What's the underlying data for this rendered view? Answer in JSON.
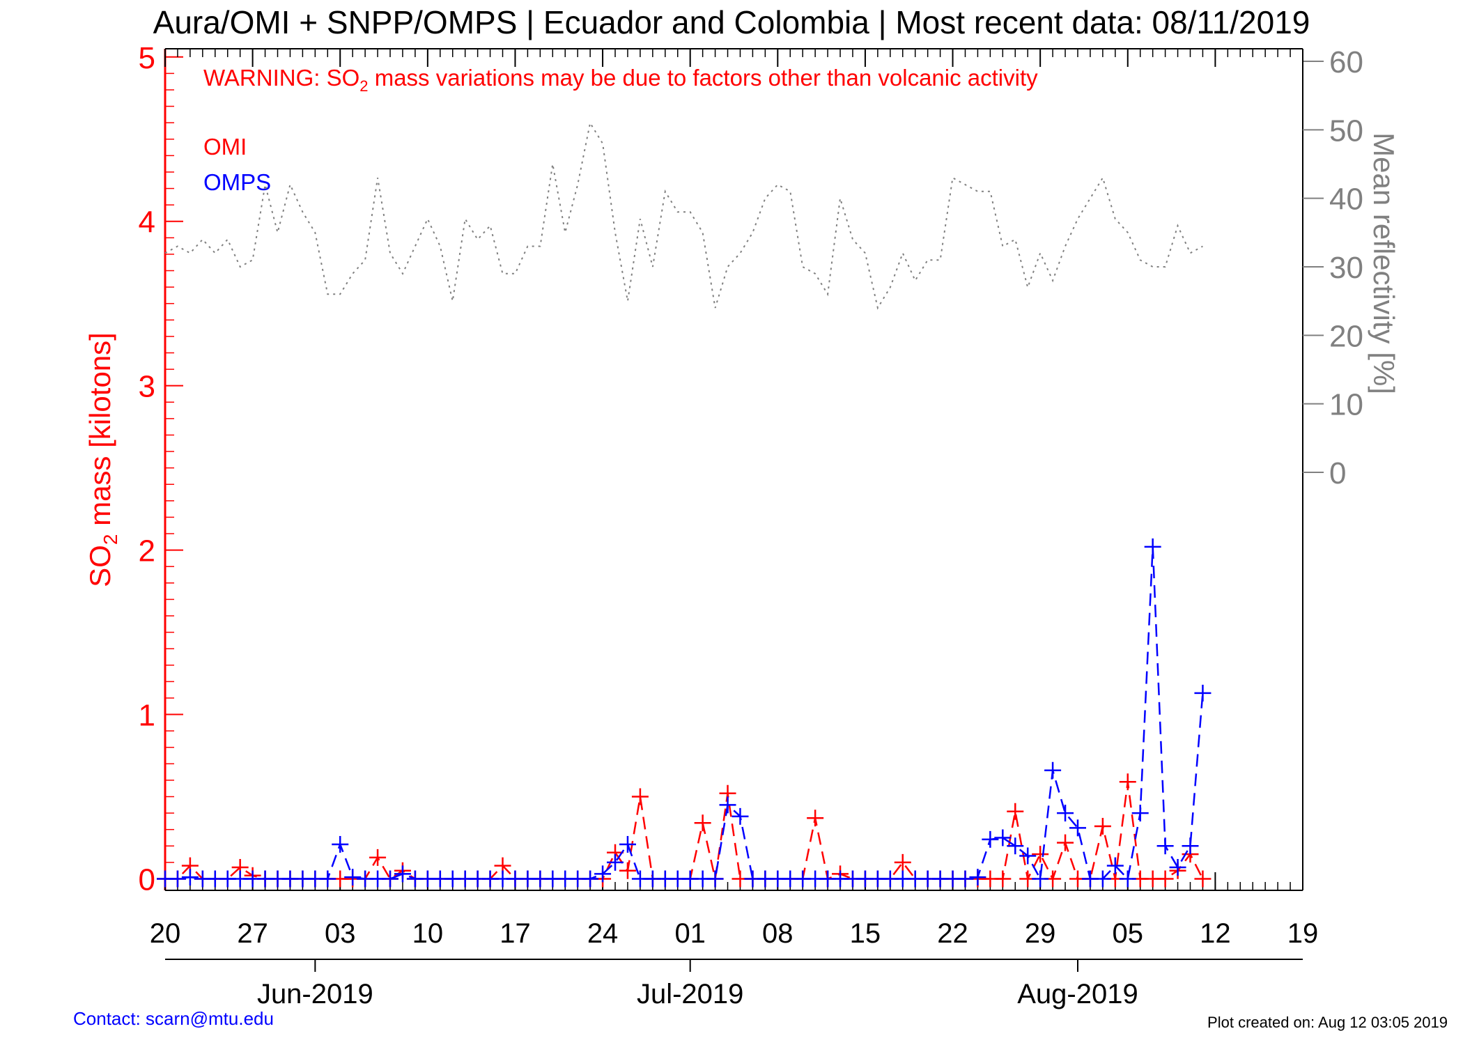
{
  "title": "Aura/OMI + SNPP/OMPS | Ecuador and Colombia | Most recent data: 08/11/2019",
  "warning": {
    "prefix": "WARNING: SO",
    "subscript": "2",
    "suffix": " mass variations may be due to factors other than volcanic activity"
  },
  "legend": {
    "omi": "OMI",
    "omps": "OMPS"
  },
  "left_axis_label": {
    "prefix": "SO",
    "subscript": "2",
    "suffix": " mass [kilotons]"
  },
  "right_axis_label": "Mean reflectivity [%]",
  "footer": {
    "contact": "Contact: scarn@mtu.edu",
    "created": "Plot created on: Aug 12 03:05 2019"
  },
  "colors": {
    "omi": "#ff0000",
    "omps": "#0000ff",
    "reflectivity": "#808080",
    "left_axis": "#ff0000",
    "right_axis": "#808080"
  },
  "chart_data": {
    "type": "line",
    "x_unit": "date",
    "x_range": [
      "2019-05-20",
      "2019-08-19"
    ],
    "x_tick_labels": [
      {
        "date": "2019-05-20",
        "label": "20"
      },
      {
        "date": "2019-05-27",
        "label": "27"
      },
      {
        "date": "2019-06-03",
        "label": "03"
      },
      {
        "date": "2019-06-10",
        "label": "10"
      },
      {
        "date": "2019-06-17",
        "label": "17"
      },
      {
        "date": "2019-06-24",
        "label": "24"
      },
      {
        "date": "2019-07-01",
        "label": "01"
      },
      {
        "date": "2019-07-08",
        "label": "08"
      },
      {
        "date": "2019-07-15",
        "label": "15"
      },
      {
        "date": "2019-07-22",
        "label": "22"
      },
      {
        "date": "2019-07-29",
        "label": "29"
      },
      {
        "date": "2019-08-05",
        "label": "05"
      },
      {
        "date": "2019-08-12",
        "label": "12"
      },
      {
        "date": "2019-08-19",
        "label": "19"
      }
    ],
    "month_labels": [
      {
        "date": "2019-06-01",
        "label": "Jun-2019"
      },
      {
        "date": "2019-07-01",
        "label": "Jul-2019"
      },
      {
        "date": "2019-08-01",
        "label": "Aug-2019"
      }
    ],
    "left_axis": {
      "ylim": [
        -0.07,
        5.05
      ],
      "ticks": [
        0,
        1,
        2,
        3,
        4,
        5
      ],
      "tick_labels": [
        "0",
        "1",
        "2",
        "3",
        "4",
        "5"
      ]
    },
    "right_axis": {
      "ylim": [
        0,
        60
      ],
      "ticks": [
        0,
        10,
        20,
        30,
        40,
        50,
        60
      ],
      "tick_labels": [
        "0",
        "10",
        "20",
        "30",
        "40",
        "50",
        "60"
      ]
    },
    "series": [
      {
        "name": "OMI",
        "axis": "left",
        "style": "dashed",
        "marker": "plus",
        "points": [
          [
            "2019-05-20",
            0.0
          ],
          [
            "2019-05-21",
            0.0
          ],
          [
            "2019-05-22",
            0.08
          ],
          [
            "2019-05-23",
            0.0
          ],
          [
            "2019-05-24",
            0.0
          ],
          [
            "2019-05-25",
            0.0
          ],
          [
            "2019-05-26",
            0.07
          ],
          [
            "2019-05-27",
            0.02
          ],
          [
            "2019-05-28",
            0.0
          ],
          [
            "2019-05-29",
            0.0
          ],
          [
            "2019-05-30",
            0.0
          ],
          [
            "2019-05-31",
            0.0
          ],
          [
            "2019-06-01",
            0.0
          ],
          [
            "2019-06-02",
            0.0
          ],
          [
            "2019-06-03",
            0.0
          ],
          [
            "2019-06-04",
            0.0
          ],
          [
            "2019-06-05",
            0.0
          ],
          [
            "2019-06-06",
            0.13
          ],
          [
            "2019-06-07",
            0.0
          ],
          [
            "2019-06-08",
            0.05
          ],
          [
            "2019-06-09",
            0.0
          ],
          [
            "2019-06-10",
            0.0
          ],
          [
            "2019-06-11",
            0.0
          ],
          [
            "2019-06-12",
            0.0
          ],
          [
            "2019-06-13",
            0.0
          ],
          [
            "2019-06-14",
            0.0
          ],
          [
            "2019-06-15",
            0.0
          ],
          [
            "2019-06-16",
            0.08
          ],
          [
            "2019-06-17",
            0.0
          ],
          [
            "2019-06-18",
            0.0
          ],
          [
            "2019-06-19",
            0.0
          ],
          [
            "2019-06-20",
            0.0
          ],
          [
            "2019-06-21",
            0.0
          ],
          [
            "2019-06-22",
            0.0
          ],
          [
            "2019-06-23",
            0.0
          ],
          [
            "2019-06-24",
            0.0
          ],
          [
            "2019-06-25",
            0.16
          ],
          [
            "2019-06-26",
            0.05
          ],
          [
            "2019-06-27",
            0.5
          ],
          [
            "2019-06-28",
            0.0
          ],
          [
            "2019-06-29",
            0.0
          ],
          [
            "2019-06-30",
            0.0
          ],
          [
            "2019-07-01",
            0.0
          ],
          [
            "2019-07-02",
            0.34
          ],
          [
            "2019-07-03",
            0.0
          ],
          [
            "2019-07-04",
            0.52
          ],
          [
            "2019-07-05",
            0.0
          ],
          [
            "2019-07-06",
            0.0
          ],
          [
            "2019-07-07",
            0.0
          ],
          [
            "2019-07-08",
            0.0
          ],
          [
            "2019-07-09",
            0.0
          ],
          [
            "2019-07-10",
            0.0
          ],
          [
            "2019-07-11",
            0.37
          ],
          [
            "2019-07-12",
            0.0
          ],
          [
            "2019-07-13",
            0.03
          ],
          [
            "2019-07-14",
            0.0
          ],
          [
            "2019-07-15",
            0.0
          ],
          [
            "2019-07-16",
            0.0
          ],
          [
            "2019-07-17",
            0.0
          ],
          [
            "2019-07-18",
            0.1
          ],
          [
            "2019-07-19",
            0.0
          ],
          [
            "2019-07-20",
            0.0
          ],
          [
            "2019-07-21",
            0.0
          ],
          [
            "2019-07-22",
            0.0
          ],
          [
            "2019-07-23",
            0.0
          ],
          [
            "2019-07-24",
            0.0
          ],
          [
            "2019-07-25",
            0.0
          ],
          [
            "2019-07-26",
            0.0
          ],
          [
            "2019-07-27",
            0.41
          ],
          [
            "2019-07-28",
            0.0
          ],
          [
            "2019-07-29",
            0.15
          ],
          [
            "2019-07-30",
            0.0
          ],
          [
            "2019-07-31",
            0.22
          ],
          [
            "2019-08-01",
            0.0
          ],
          [
            "2019-08-02",
            0.0
          ],
          [
            "2019-08-03",
            0.32
          ],
          [
            "2019-08-04",
            0.0
          ],
          [
            "2019-08-05",
            0.59
          ],
          [
            "2019-08-06",
            0.0
          ],
          [
            "2019-08-07",
            0.0
          ],
          [
            "2019-08-08",
            0.0
          ],
          [
            "2019-08-09",
            0.05
          ],
          [
            "2019-08-10",
            0.15
          ],
          [
            "2019-08-11",
            0.0
          ]
        ]
      },
      {
        "name": "OMPS",
        "axis": "left",
        "style": "dashed",
        "marker": "plus",
        "points": [
          [
            "2019-05-20",
            0.0
          ],
          [
            "2019-05-21",
            0.0
          ],
          [
            "2019-05-22",
            0.01
          ],
          [
            "2019-05-23",
            0.0
          ],
          [
            "2019-05-24",
            0.0
          ],
          [
            "2019-05-25",
            0.0
          ],
          [
            "2019-05-26",
            0.0
          ],
          [
            "2019-05-27",
            0.0
          ],
          [
            "2019-05-28",
            0.0
          ],
          [
            "2019-05-29",
            0.0
          ],
          [
            "2019-05-30",
            0.0
          ],
          [
            "2019-05-31",
            0.0
          ],
          [
            "2019-06-01",
            0.0
          ],
          [
            "2019-06-02",
            0.0
          ],
          [
            "2019-06-03",
            0.21
          ],
          [
            "2019-06-04",
            0.01
          ],
          [
            "2019-06-05",
            0.0
          ],
          [
            "2019-06-06",
            0.0
          ],
          [
            "2019-06-07",
            0.0
          ],
          [
            "2019-06-08",
            0.03
          ],
          [
            "2019-06-09",
            0.0
          ],
          [
            "2019-06-10",
            0.0
          ],
          [
            "2019-06-11",
            0.0
          ],
          [
            "2019-06-12",
            0.0
          ],
          [
            "2019-06-13",
            0.0
          ],
          [
            "2019-06-14",
            0.0
          ],
          [
            "2019-06-15",
            0.0
          ],
          [
            "2019-06-16",
            0.0
          ],
          [
            "2019-06-17",
            0.0
          ],
          [
            "2019-06-18",
            0.0
          ],
          [
            "2019-06-19",
            0.0
          ],
          [
            "2019-06-20",
            0.0
          ],
          [
            "2019-06-21",
            0.0
          ],
          [
            "2019-06-22",
            0.0
          ],
          [
            "2019-06-23",
            0.0
          ],
          [
            "2019-06-24",
            0.03
          ],
          [
            "2019-06-25",
            0.1
          ],
          [
            "2019-06-26",
            0.21
          ],
          [
            "2019-06-27",
            0.0
          ],
          [
            "2019-06-28",
            0.0
          ],
          [
            "2019-06-29",
            0.0
          ],
          [
            "2019-06-30",
            0.0
          ],
          [
            "2019-07-01",
            0.0
          ],
          [
            "2019-07-02",
            0.0
          ],
          [
            "2019-07-03",
            0.0
          ],
          [
            "2019-07-04",
            0.45
          ],
          [
            "2019-07-05",
            0.38
          ],
          [
            "2019-07-06",
            0.0
          ],
          [
            "2019-07-07",
            0.0
          ],
          [
            "2019-07-08",
            0.0
          ],
          [
            "2019-07-09",
            0.0
          ],
          [
            "2019-07-10",
            0.0
          ],
          [
            "2019-07-11",
            0.0
          ],
          [
            "2019-07-12",
            0.0
          ],
          [
            "2019-07-13",
            0.0
          ],
          [
            "2019-07-14",
            0.0
          ],
          [
            "2019-07-15",
            0.0
          ],
          [
            "2019-07-16",
            0.0
          ],
          [
            "2019-07-17",
            0.0
          ],
          [
            "2019-07-18",
            0.0
          ],
          [
            "2019-07-19",
            0.0
          ],
          [
            "2019-07-20",
            0.0
          ],
          [
            "2019-07-21",
            0.0
          ],
          [
            "2019-07-22",
            0.0
          ],
          [
            "2019-07-23",
            0.0
          ],
          [
            "2019-07-24",
            0.01
          ],
          [
            "2019-07-25",
            0.24
          ],
          [
            "2019-07-26",
            0.25
          ],
          [
            "2019-07-27",
            0.2
          ],
          [
            "2019-07-28",
            0.14
          ],
          [
            "2019-07-29",
            0.0
          ],
          [
            "2019-07-30",
            0.66
          ],
          [
            "2019-07-31",
            0.4
          ],
          [
            "2019-08-01",
            0.31
          ],
          [
            "2019-08-02",
            0.0
          ],
          [
            "2019-08-03",
            0.0
          ],
          [
            "2019-08-04",
            0.08
          ],
          [
            "2019-08-05",
            0.0
          ],
          [
            "2019-08-06",
            0.4
          ],
          [
            "2019-08-07",
            2.02
          ],
          [
            "2019-08-08",
            0.2
          ],
          [
            "2019-08-09",
            0.07
          ],
          [
            "2019-08-10",
            0.2
          ],
          [
            "2019-08-11",
            1.13
          ]
        ]
      },
      {
        "name": "Mean reflectivity",
        "axis": "right",
        "style": "dotted",
        "marker": "none",
        "points": [
          [
            "2019-05-20",
            32
          ],
          [
            "2019-05-21",
            33
          ],
          [
            "2019-05-22",
            32
          ],
          [
            "2019-05-23",
            34
          ],
          [
            "2019-05-24",
            32
          ],
          [
            "2019-05-25",
            34
          ],
          [
            "2019-05-26",
            30
          ],
          [
            "2019-05-27",
            31
          ],
          [
            "2019-05-28",
            42
          ],
          [
            "2019-05-29",
            35
          ],
          [
            "2019-05-30",
            42
          ],
          [
            "2019-05-31",
            38
          ],
          [
            "2019-06-01",
            35
          ],
          [
            "2019-06-02",
            26
          ],
          [
            "2019-06-03",
            26
          ],
          [
            "2019-06-04",
            29
          ],
          [
            "2019-06-05",
            31
          ],
          [
            "2019-06-06",
            43
          ],
          [
            "2019-06-07",
            32
          ],
          [
            "2019-06-08",
            29
          ],
          [
            "2019-06-09",
            33
          ],
          [
            "2019-06-10",
            37
          ],
          [
            "2019-06-11",
            33
          ],
          [
            "2019-06-12",
            25
          ],
          [
            "2019-06-13",
            37
          ],
          [
            "2019-06-14",
            34
          ],
          [
            "2019-06-15",
            36
          ],
          [
            "2019-06-16",
            29
          ],
          [
            "2019-06-17",
            29
          ],
          [
            "2019-06-18",
            33
          ],
          [
            "2019-06-19",
            33
          ],
          [
            "2019-06-20",
            45
          ],
          [
            "2019-06-21",
            35
          ],
          [
            "2019-06-22",
            42
          ],
          [
            "2019-06-23",
            51
          ],
          [
            "2019-06-24",
            48
          ],
          [
            "2019-06-25",
            35
          ],
          [
            "2019-06-26",
            25
          ],
          [
            "2019-06-27",
            37
          ],
          [
            "2019-06-28",
            30
          ],
          [
            "2019-06-29",
            41
          ],
          [
            "2019-06-30",
            38
          ],
          [
            "2019-07-01",
            38
          ],
          [
            "2019-07-02",
            35
          ],
          [
            "2019-07-03",
            24
          ],
          [
            "2019-07-04",
            30
          ],
          [
            "2019-07-05",
            32
          ],
          [
            "2019-07-06",
            35
          ],
          [
            "2019-07-07",
            40
          ],
          [
            "2019-07-08",
            42
          ],
          [
            "2019-07-09",
            41
          ],
          [
            "2019-07-10",
            30
          ],
          [
            "2019-07-11",
            29
          ],
          [
            "2019-07-12",
            26
          ],
          [
            "2019-07-13",
            40
          ],
          [
            "2019-07-14",
            34
          ],
          [
            "2019-07-15",
            32
          ],
          [
            "2019-07-16",
            24
          ],
          [
            "2019-07-17",
            27
          ],
          [
            "2019-07-18",
            32
          ],
          [
            "2019-07-19",
            28
          ],
          [
            "2019-07-20",
            31
          ],
          [
            "2019-07-21",
            31
          ],
          [
            "2019-07-22",
            43
          ],
          [
            "2019-07-23",
            42
          ],
          [
            "2019-07-24",
            41
          ],
          [
            "2019-07-25",
            41
          ],
          [
            "2019-07-26",
            33
          ],
          [
            "2019-07-27",
            34
          ],
          [
            "2019-07-28",
            27
          ],
          [
            "2019-07-29",
            32
          ],
          [
            "2019-07-30",
            28
          ],
          [
            "2019-07-31",
            33
          ],
          [
            "2019-08-01",
            37
          ],
          [
            "2019-08-02",
            40
          ],
          [
            "2019-08-03",
            43
          ],
          [
            "2019-08-04",
            37
          ],
          [
            "2019-08-05",
            35
          ],
          [
            "2019-08-06",
            31
          ],
          [
            "2019-08-07",
            30
          ],
          [
            "2019-08-08",
            30
          ],
          [
            "2019-08-09",
            36
          ],
          [
            "2019-08-10",
            32
          ],
          [
            "2019-08-11",
            33
          ]
        ]
      }
    ]
  }
}
